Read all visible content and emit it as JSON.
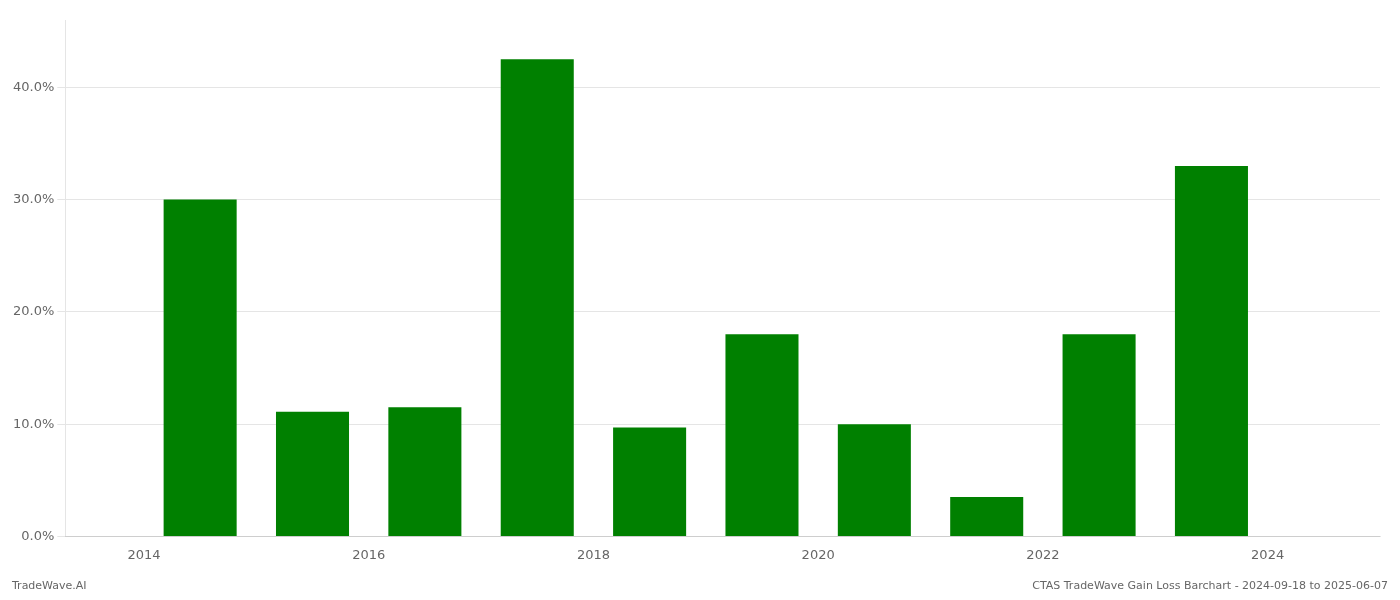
{
  "chart_data": {
    "type": "bar",
    "x": [
      2014,
      2015,
      2016,
      2017,
      2018,
      2019,
      2020,
      2021,
      2022,
      2023
    ],
    "values": [
      0.3,
      0.111,
      0.115,
      0.425,
      0.097,
      0.18,
      0.1,
      0.035,
      0.18,
      0.33
    ],
    "color": "#008000",
    "xlim": [
      2012.8,
      2024.5
    ],
    "xticks": [
      {
        "value": 2013.5,
        "label": "2014"
      },
      {
        "value": 2015.5,
        "label": "2016"
      },
      {
        "value": 2017.5,
        "label": "2018"
      },
      {
        "value": 2019.5,
        "label": "2020"
      },
      {
        "value": 2021.5,
        "label": "2022"
      },
      {
        "value": 2023.5,
        "label": "2024"
      }
    ],
    "ylim": [
      0,
      0.46
    ],
    "yticks": [
      {
        "value": 0.0,
        "label": "0.0%"
      },
      {
        "value": 0.1,
        "label": "10.0%"
      },
      {
        "value": 0.2,
        "label": "20.0%"
      },
      {
        "value": 0.3,
        "label": "30.0%"
      },
      {
        "value": 0.4,
        "label": "40.0%"
      }
    ],
    "grid": true,
    "annotations": [
      "TradeWave.AI",
      "CTAS TradeWave Gain Loss Barchart - 2024-09-18 to 2025-06-07"
    ]
  }
}
